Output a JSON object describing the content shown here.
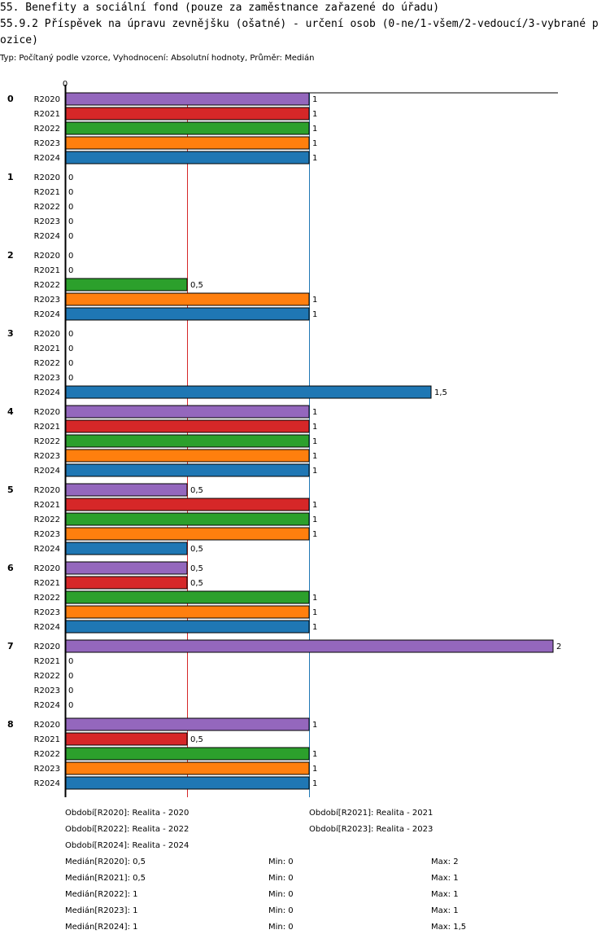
{
  "title_line1": "55. Benefity a sociální fond (pouze za zaměstnance zařazené do úřadu)",
  "title_line2": "55.9.2 Příspěvek na úpravu zevnějšku (ošatné) - určení osob (0-ne/1-všem/2-vedoucí/3-vybrané pozice)",
  "subtitle": "Typ: Počítaný podle vzorce, Vyhodnocení: Absolutní hodnoty, Průměr: Medián",
  "chart_data": {
    "type": "bar",
    "orientation": "horizontal",
    "axis_tick_label": "0",
    "xlim": [
      0,
      2
    ],
    "reference_lines": [
      {
        "name": "R2021 median",
        "value": 0.5,
        "color": "#d62728"
      },
      {
        "name": "R2022 median",
        "value": 1,
        "color": "#1f77b4"
      }
    ],
    "series_names": [
      "R2020",
      "R2021",
      "R2022",
      "R2023",
      "R2024"
    ],
    "series_colors": [
      "#9467bd",
      "#d62728",
      "#2ca02c",
      "#ff7f0e",
      "#1f77b4"
    ],
    "groups": [
      {
        "label": "0",
        "values": [
          1,
          1,
          1,
          1,
          1
        ],
        "value_labels": [
          "1",
          "1",
          "1",
          "1",
          "1"
        ]
      },
      {
        "label": "1",
        "values": [
          0,
          0,
          0,
          0,
          0
        ],
        "value_labels": [
          "0",
          "0",
          "0",
          "0",
          "0"
        ]
      },
      {
        "label": "2",
        "values": [
          0,
          0,
          0.5,
          1,
          1
        ],
        "value_labels": [
          "0",
          "0",
          "0,5",
          "1",
          "1"
        ]
      },
      {
        "label": "3",
        "values": [
          0,
          0,
          0,
          0,
          1.5
        ],
        "value_labels": [
          "0",
          "0",
          "0",
          "0",
          "1,5"
        ]
      },
      {
        "label": "4",
        "values": [
          1,
          1,
          1,
          1,
          1
        ],
        "value_labels": [
          "1",
          "1",
          "1",
          "1",
          "1"
        ]
      },
      {
        "label": "5",
        "values": [
          0.5,
          1,
          1,
          1,
          0.5
        ],
        "value_labels": [
          "0,5",
          "1",
          "1",
          "1",
          "0,5"
        ]
      },
      {
        "label": "6",
        "values": [
          0.5,
          0.5,
          1,
          1,
          1
        ],
        "value_labels": [
          "0,5",
          "0,5",
          "1",
          "1",
          "1"
        ]
      },
      {
        "label": "7",
        "values": [
          2,
          0,
          0,
          0,
          0
        ],
        "value_labels": [
          "2",
          "0",
          "0",
          "0",
          "0"
        ]
      },
      {
        "label": "8",
        "values": [
          1,
          0.5,
          1,
          1,
          1
        ],
        "value_labels": [
          "1",
          "0,5",
          "1",
          "1",
          "1"
        ]
      }
    ]
  },
  "legend": {
    "periods": [
      "Období[R2020]: Realita - 2020",
      "Období[R2021]: Realita - 2021",
      "Období[R2022]: Realita - 2022",
      "Období[R2023]: Realita - 2023",
      "Období[R2024]: Realita - 2024"
    ],
    "stats": [
      {
        "median": "Medián[R2020]: 0,5",
        "min": "Min: 0",
        "max": "Max: 2"
      },
      {
        "median": "Medián[R2021]: 0,5",
        "min": "Min: 0",
        "max": "Max: 1"
      },
      {
        "median": "Medián[R2022]: 1",
        "min": "Min: 0",
        "max": "Max: 1"
      },
      {
        "median": "Medián[R2023]: 1",
        "min": "Min: 0",
        "max": "Max: 1"
      },
      {
        "median": "Medián[R2024]: 1",
        "min": "Min: 0",
        "max": "Max: 1,5"
      }
    ]
  }
}
